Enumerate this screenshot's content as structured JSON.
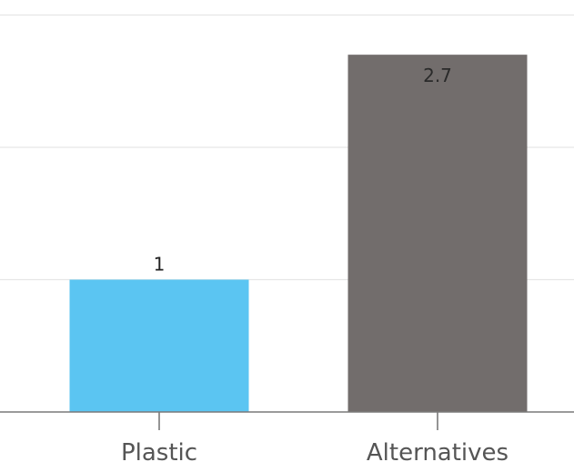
{
  "chart_data": {
    "type": "bar",
    "categories": [
      "Plastic",
      "Alternatives"
    ],
    "values": [
      1,
      2.7
    ],
    "value_labels": [
      "1",
      "2.7"
    ],
    "ylim": [
      0,
      3
    ],
    "grid": true,
    "colors": [
      "#5bc5f2",
      "#726d6c"
    ],
    "label_colors": [
      "#222222",
      "#2a2a2a"
    ],
    "label_positions": [
      "above",
      "inside-top"
    ]
  }
}
